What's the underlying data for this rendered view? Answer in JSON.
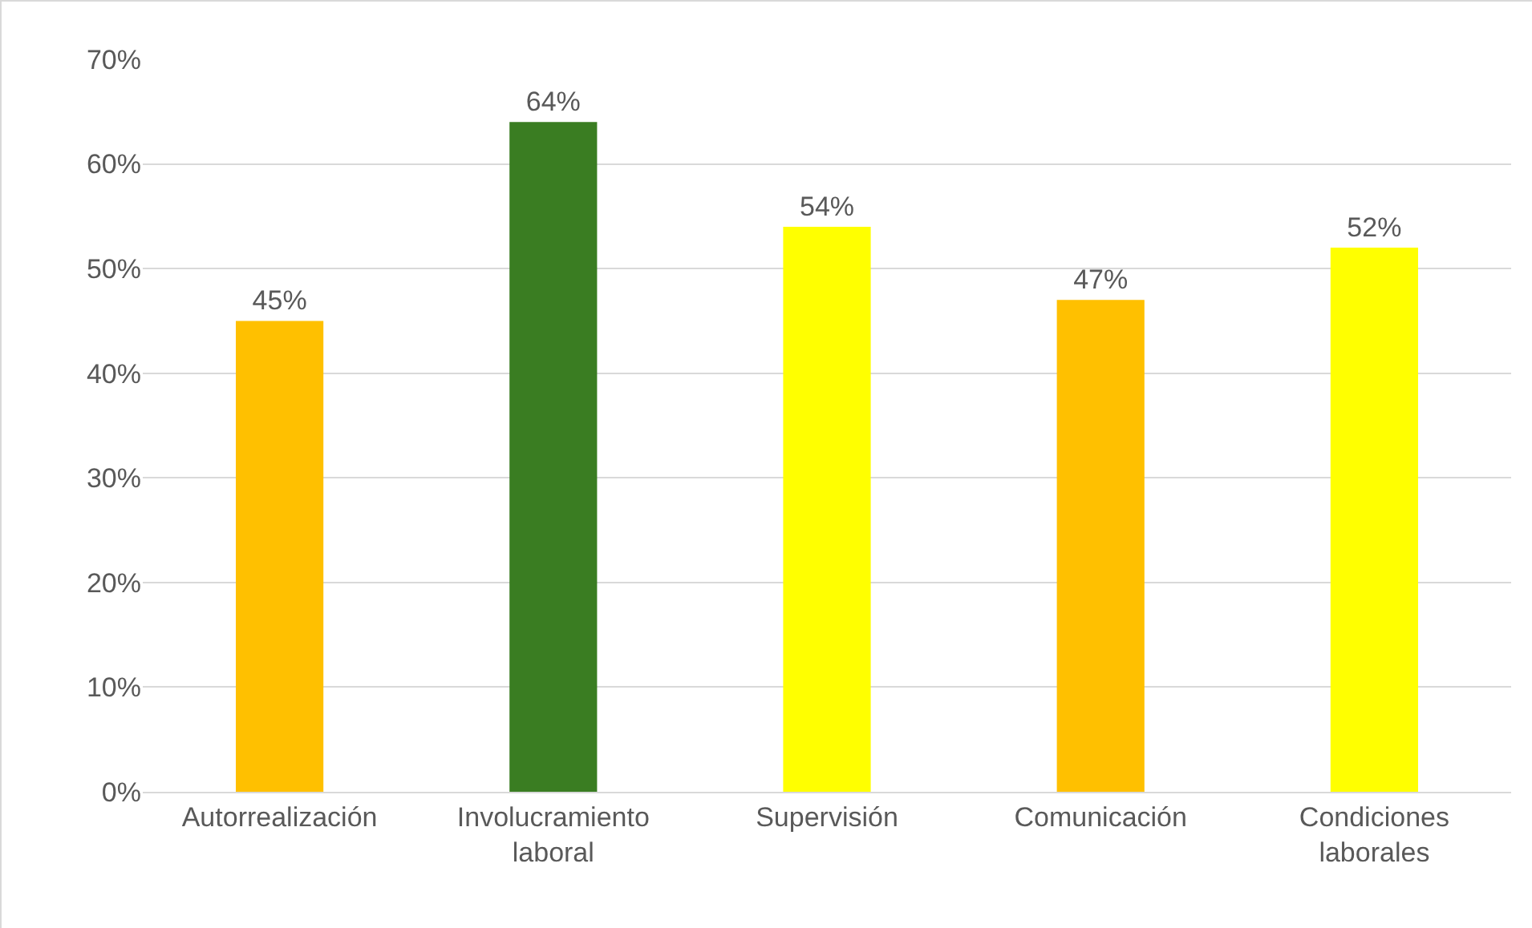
{
  "chart_data": {
    "type": "bar",
    "categories": [
      "Autorrealización",
      "Involucramiento laboral",
      "Supervisión",
      "Comunicación",
      "Condiciones laborales"
    ],
    "values": [
      45,
      64,
      54,
      47,
      52
    ],
    "colors": [
      "#ffc000",
      "#3a7d22",
      "#ffff00",
      "#ffc000",
      "#ffff00"
    ],
    "value_labels": [
      "45%",
      "64%",
      "54%",
      "47%",
      "52%"
    ],
    "ylim": [
      0,
      70
    ],
    "yticks": [
      {
        "value": 0,
        "label": "0%"
      },
      {
        "value": 10,
        "label": "10%"
      },
      {
        "value": 20,
        "label": "20%"
      },
      {
        "value": 30,
        "label": "30%"
      },
      {
        "value": 40,
        "label": "40%"
      },
      {
        "value": 50,
        "label": "50%"
      },
      {
        "value": 60,
        "label": "60%"
      },
      {
        "value": 70,
        "label": "70%"
      }
    ],
    "grid": "y",
    "legend": false
  }
}
